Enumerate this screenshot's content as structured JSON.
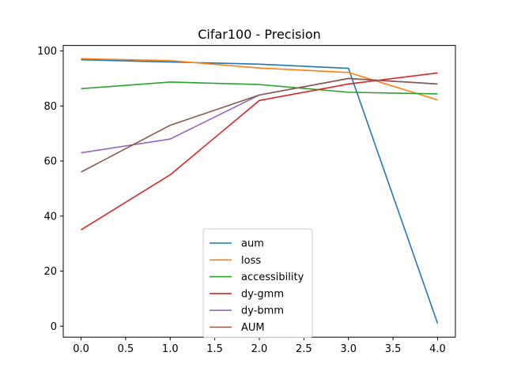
{
  "chart_data": {
    "type": "line",
    "title": "Cifar100 - Precision",
    "xlabel": "",
    "ylabel": "",
    "x": [
      0.0,
      1.0,
      2.0,
      3.0,
      4.0
    ],
    "xlim": [
      -0.2,
      4.2
    ],
    "ylim": [
      -4,
      102
    ],
    "xticks": [
      0.0,
      0.5,
      1.0,
      1.5,
      2.0,
      2.5,
      3.0,
      3.5,
      4.0
    ],
    "xtick_labels": [
      "0.0",
      "0.5",
      "1.0",
      "1.5",
      "2.0",
      "2.5",
      "3.0",
      "3.5",
      "4.0"
    ],
    "yticks": [
      0,
      20,
      40,
      60,
      80,
      100
    ],
    "ytick_labels": [
      "0",
      "20",
      "40",
      "60",
      "80",
      "100"
    ],
    "grid": false,
    "legend_position": "bottom-center",
    "series": [
      {
        "name": "aum",
        "color": "#1f77b4",
        "values": [
          96.8,
          96.0,
          95.2,
          93.7,
          1.0
        ]
      },
      {
        "name": "loss",
        "color": "#ff7f0e",
        "values": [
          97.2,
          96.5,
          93.8,
          92.2,
          82.2
        ]
      },
      {
        "name": "accessibility",
        "color": "#2ca02c",
        "values": [
          86.3,
          88.7,
          87.8,
          85.0,
          84.4
        ]
      },
      {
        "name": "dy-gmm",
        "color": "#d62728",
        "values": [
          35.0,
          55.0,
          82.0,
          88.0,
          92.0
        ]
      },
      {
        "name": "dy-bmm",
        "color": "#9467bd",
        "values": [
          63.0,
          68.0,
          84.0,
          90.0,
          88.0
        ]
      },
      {
        "name": "AUM",
        "color": "#8c564b",
        "values": [
          56.0,
          73.0,
          84.0,
          90.0,
          88.0
        ]
      }
    ]
  }
}
